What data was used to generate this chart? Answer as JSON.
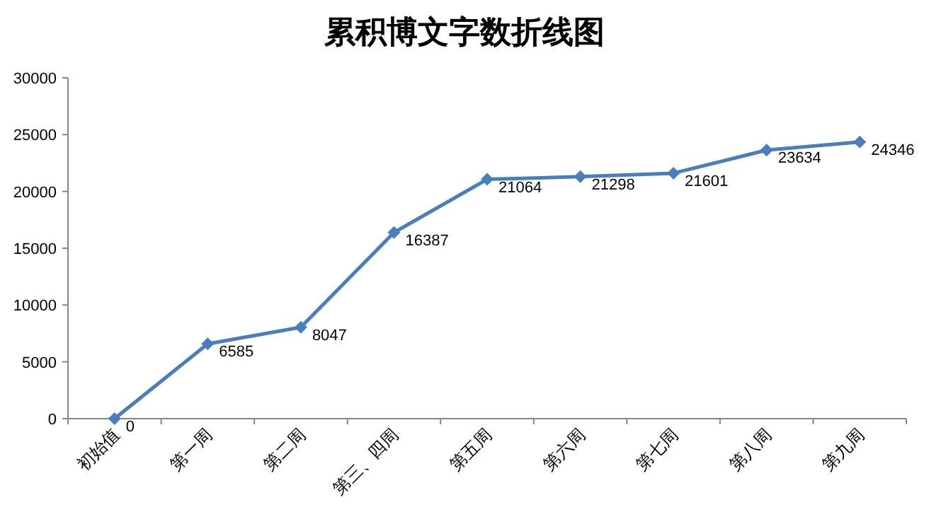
{
  "chart_data": {
    "type": "line",
    "title": "累积博文字数折线图",
    "categories": [
      "初始值",
      "第一周",
      "第二周",
      "第三、四周",
      "第五周",
      "第六周",
      "第七周",
      "第八周",
      "第九周"
    ],
    "series": [
      {
        "color": "#4a7ebb",
        "values": [
          0,
          6585,
          8047,
          16387,
          21064,
          21298,
          21601,
          23634,
          24346
        ]
      }
    ],
    "ylim": [
      0,
      30000
    ],
    "yticks": [
      0,
      5000,
      10000,
      15000,
      20000,
      25000,
      30000
    ],
    "data_labels": true,
    "marker": "diamond",
    "line_style": "solid",
    "grid": false
  }
}
